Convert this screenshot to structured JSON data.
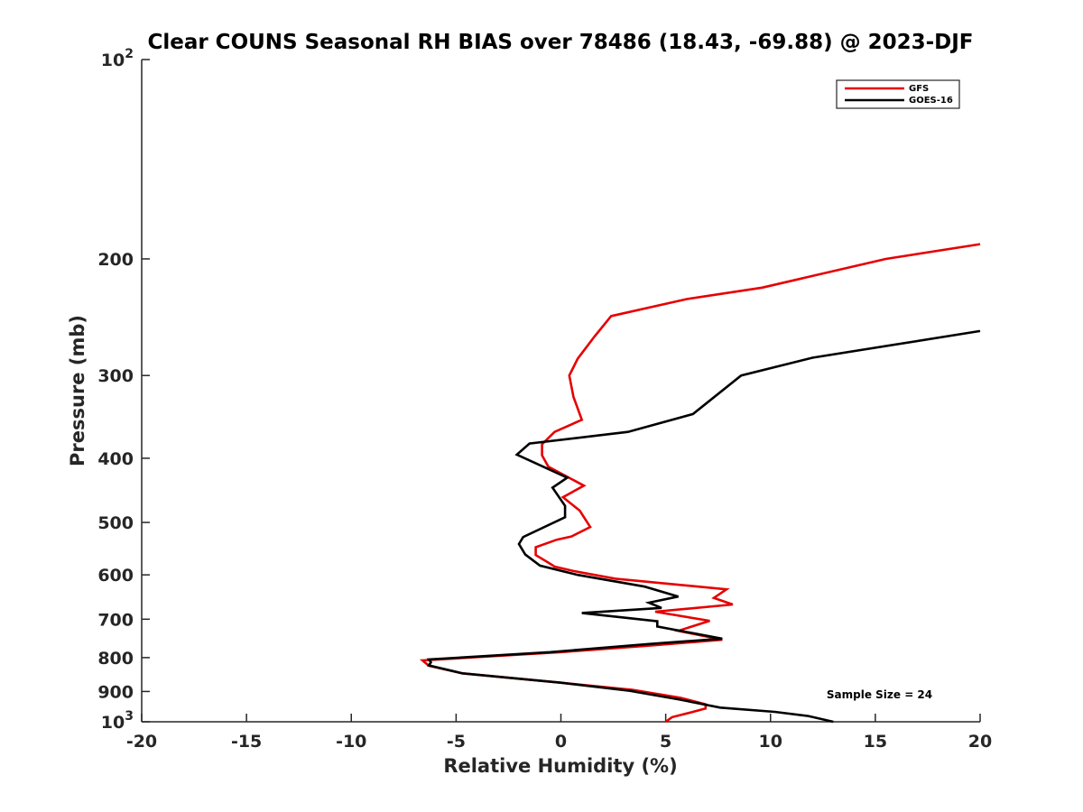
{
  "chart_data": {
    "type": "line",
    "title": "Clear COUNS Seasonal RH BIAS over 78486 (18.43, -69.88) @ 2023-DJF",
    "xlabel": "Relative Humidity (%)",
    "ylabel": "Pressure (mb)",
    "xlim": [
      -20,
      20
    ],
    "ylim": [
      100,
      1000
    ],
    "y_scale": "log",
    "y_reversed": true,
    "grid": false,
    "legend_position": "top-right",
    "x_ticks": [
      -20,
      -15,
      -10,
      -5,
      0,
      5,
      10,
      15,
      20
    ],
    "x_tick_labels": [
      "-20",
      "-15",
      "-10",
      "-5",
      "0",
      "5",
      "10",
      "15",
      "20"
    ],
    "y_ticks": [
      100,
      200,
      300,
      400,
      500,
      600,
      700,
      800,
      900,
      1000
    ],
    "y_tick_labels": [
      {
        "base": "10",
        "sup": "2"
      },
      {
        "base": "200"
      },
      {
        "base": "300"
      },
      {
        "base": "400"
      },
      {
        "base": "500"
      },
      {
        "base": "600"
      },
      {
        "base": "700"
      },
      {
        "base": "800"
      },
      {
        "base": "900"
      },
      {
        "base": "10",
        "sup": "3"
      }
    ],
    "series": [
      {
        "name": "GFS",
        "color": "#e60000",
        "points": [
          [
            20,
            190
          ],
          [
            15.5,
            200
          ],
          [
            9.6,
            221
          ],
          [
            6,
            230
          ],
          [
            2.4,
            244
          ],
          [
            1.6,
            262
          ],
          [
            0.8,
            283
          ],
          [
            0.4,
            300
          ],
          [
            0.6,
            323
          ],
          [
            1,
            350
          ],
          [
            -0.3,
            365
          ],
          [
            -0.9,
            381
          ],
          [
            -0.9,
            396
          ],
          [
            -0.6,
            412
          ],
          [
            1.1,
            440
          ],
          [
            0.1,
            458
          ],
          [
            0.9,
            480
          ],
          [
            1.4,
            508
          ],
          [
            0.5,
            525
          ],
          [
            -0.2,
            531
          ],
          [
            -1.2,
            545
          ],
          [
            -1.2,
            560
          ],
          [
            -0.6,
            575
          ],
          [
            -0.3,
            583
          ],
          [
            0.6,
            592
          ],
          [
            2.6,
            608
          ],
          [
            7.9,
            631
          ],
          [
            7.3,
            650
          ],
          [
            8.2,
            665
          ],
          [
            4.5,
            682
          ],
          [
            7.1,
            704
          ],
          [
            5.6,
            729
          ],
          [
            7.7,
            752
          ],
          [
            4.3,
            767
          ],
          [
            0,
            785
          ],
          [
            -6.6,
            808
          ],
          [
            -6.5,
            813
          ],
          [
            -6.3,
            823
          ],
          [
            -4.7,
            845
          ],
          [
            0,
            873
          ],
          [
            3.4,
            895
          ],
          [
            5.7,
            920
          ],
          [
            6.9,
            941
          ],
          [
            6.9,
            955
          ],
          [
            6.2,
            968
          ],
          [
            5.3,
            984
          ],
          [
            5,
            1000
          ]
        ]
      },
      {
        "name": "GOES-16",
        "color": "#000000",
        "points": [
          [
            20,
            257
          ],
          [
            12,
            282
          ],
          [
            8.6,
            300
          ],
          [
            6.3,
            343
          ],
          [
            3.2,
            365
          ],
          [
            -1.5,
            380
          ],
          [
            -2.1,
            395
          ],
          [
            0.3,
            428
          ],
          [
            -0.4,
            443
          ],
          [
            0.2,
            472
          ],
          [
            0.2,
            491
          ],
          [
            -1.8,
            526
          ],
          [
            -2,
            539
          ],
          [
            -1.7,
            559
          ],
          [
            -1,
            581
          ],
          [
            0.8,
            600
          ],
          [
            4,
            625
          ],
          [
            5.6,
            647
          ],
          [
            4.2,
            661
          ],
          [
            4.8,
            673
          ],
          [
            1,
            685
          ],
          [
            4.6,
            705
          ],
          [
            4.6,
            718
          ],
          [
            7.7,
            749
          ],
          [
            4.2,
            763
          ],
          [
            -0.5,
            785
          ],
          [
            -6.3,
            805
          ],
          [
            -6.2,
            813
          ],
          [
            -6.3,
            822
          ],
          [
            -4.7,
            845
          ],
          [
            0,
            873
          ],
          [
            3.3,
            898
          ],
          [
            5.6,
            925
          ],
          [
            7.6,
            952
          ],
          [
            10.2,
            966
          ],
          [
            11.8,
            980
          ],
          [
            13,
            1000
          ]
        ]
      }
    ],
    "annotations": [
      {
        "text": "Sample Size = 24",
        "x": 15.2,
        "y": 910
      }
    ]
  }
}
